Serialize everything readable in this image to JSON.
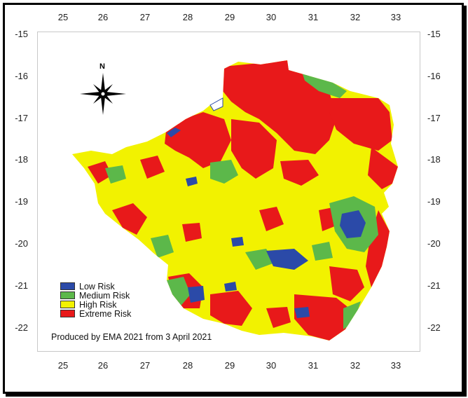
{
  "map": {
    "x_ticks": [
      "25",
      "26",
      "27",
      "28",
      "29",
      "30",
      "31",
      "32",
      "33"
    ],
    "y_ticks": [
      "-15",
      "-16",
      "-17",
      "-18",
      "-19",
      "-20",
      "-21",
      "-22"
    ],
    "north_label": "N",
    "legend": [
      {
        "label": "Low Risk",
        "color": "#2b4aa8"
      },
      {
        "label": "Medium Risk",
        "color": "#5cb84a"
      },
      {
        "label": "High Risk",
        "color": "#f2f200"
      },
      {
        "label": "Extreme Risk",
        "color": "#e8191a"
      }
    ],
    "caption": "Produced by EMA 2021 from 3 April 2021"
  }
}
